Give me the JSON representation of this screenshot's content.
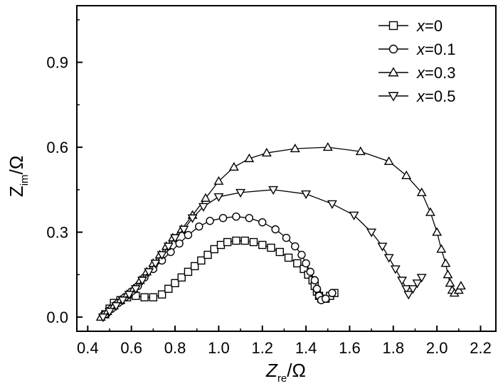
{
  "chart_data": {
    "type": "scatter",
    "title": "",
    "xlabel": {
      "main": "Z",
      "sub": "re",
      "unit": "/Ω"
    },
    "ylabel": {
      "main": "Z",
      "sub": "im",
      "unit": "/Ω"
    },
    "xlim": [
      0.35,
      2.27
    ],
    "ylim": [
      -0.05,
      1.1
    ],
    "xticks": [
      0.4,
      0.6,
      0.8,
      1.0,
      1.2,
      1.4,
      1.6,
      1.8,
      2.0,
      2.2
    ],
    "xtick_labels": [
      "0.4",
      "0.6",
      "0.8",
      "1.0",
      "1.2",
      "1.4",
      "1.6",
      "1.8",
      "2.0",
      "2.2"
    ],
    "yticks": [
      0.0,
      0.3,
      0.6,
      0.9
    ],
    "ytick_labels": [
      "0.0",
      "0.3",
      "0.6",
      "0.9"
    ],
    "grid": false,
    "legend_position": "top-right",
    "color": "#000000",
    "series": [
      {
        "name": "x=0",
        "legend_var": "x",
        "legend_value": "=0",
        "marker": "square",
        "points": [
          [
            0.48,
            0.01
          ],
          [
            0.5,
            0.03
          ],
          [
            0.52,
            0.05
          ],
          [
            0.55,
            0.06
          ],
          [
            0.58,
            0.07
          ],
          [
            0.62,
            0.075
          ],
          [
            0.66,
            0.07
          ],
          [
            0.7,
            0.07
          ],
          [
            0.74,
            0.08
          ],
          [
            0.77,
            0.1
          ],
          [
            0.8,
            0.12
          ],
          [
            0.83,
            0.14
          ],
          [
            0.86,
            0.16
          ],
          [
            0.89,
            0.18
          ],
          [
            0.92,
            0.2
          ],
          [
            0.95,
            0.22
          ],
          [
            0.98,
            0.24
          ],
          [
            1.01,
            0.255
          ],
          [
            1.04,
            0.265
          ],
          [
            1.08,
            0.27
          ],
          [
            1.12,
            0.27
          ],
          [
            1.16,
            0.265
          ],
          [
            1.2,
            0.255
          ],
          [
            1.24,
            0.245
          ],
          [
            1.28,
            0.23
          ],
          [
            1.32,
            0.21
          ],
          [
            1.36,
            0.19
          ],
          [
            1.39,
            0.17
          ],
          [
            1.41,
            0.15
          ],
          [
            1.43,
            0.13
          ],
          [
            1.44,
            0.11
          ],
          [
            1.45,
            0.09
          ],
          [
            1.46,
            0.075
          ],
          [
            1.47,
            0.065
          ],
          [
            1.49,
            0.065
          ],
          [
            1.51,
            0.075
          ],
          [
            1.53,
            0.085
          ]
        ]
      },
      {
        "name": "x=0.1",
        "legend_var": "x",
        "legend_value": "=0.1",
        "marker": "circle",
        "points": [
          [
            0.48,
            0.01
          ],
          [
            0.51,
            0.03
          ],
          [
            0.54,
            0.05
          ],
          [
            0.57,
            0.07
          ],
          [
            0.6,
            0.09
          ],
          [
            0.63,
            0.11
          ],
          [
            0.66,
            0.14
          ],
          [
            0.7,
            0.17
          ],
          [
            0.74,
            0.2
          ],
          [
            0.78,
            0.23
          ],
          [
            0.82,
            0.26
          ],
          [
            0.86,
            0.29
          ],
          [
            0.91,
            0.32
          ],
          [
            0.96,
            0.34
          ],
          [
            1.02,
            0.35
          ],
          [
            1.08,
            0.355
          ],
          [
            1.14,
            0.35
          ],
          [
            1.2,
            0.335
          ],
          [
            1.26,
            0.31
          ],
          [
            1.31,
            0.28
          ],
          [
            1.35,
            0.25
          ],
          [
            1.38,
            0.22
          ],
          [
            1.4,
            0.19
          ],
          [
            1.42,
            0.16
          ],
          [
            1.44,
            0.13
          ],
          [
            1.45,
            0.1
          ],
          [
            1.46,
            0.075
          ],
          [
            1.47,
            0.06
          ],
          [
            1.49,
            0.065
          ],
          [
            1.52,
            0.085
          ]
        ]
      },
      {
        "name": "x=0.3",
        "legend_var": "x",
        "legend_value": "=0.3",
        "marker": "triangle-up",
        "points": [
          [
            0.46,
            0.0
          ],
          [
            0.49,
            0.02
          ],
          [
            0.52,
            0.04
          ],
          [
            0.55,
            0.06
          ],
          [
            0.58,
            0.08
          ],
          [
            0.61,
            0.1
          ],
          [
            0.64,
            0.13
          ],
          [
            0.67,
            0.16
          ],
          [
            0.7,
            0.19
          ],
          [
            0.73,
            0.22
          ],
          [
            0.76,
            0.25
          ],
          [
            0.79,
            0.28
          ],
          [
            0.83,
            0.31
          ],
          [
            0.88,
            0.36
          ],
          [
            0.94,
            0.42
          ],
          [
            1.0,
            0.48
          ],
          [
            1.07,
            0.53
          ],
          [
            1.14,
            0.56
          ],
          [
            1.22,
            0.58
          ],
          [
            1.35,
            0.595
          ],
          [
            1.5,
            0.6
          ],
          [
            1.65,
            0.585
          ],
          [
            1.78,
            0.55
          ],
          [
            1.86,
            0.5
          ],
          [
            1.93,
            0.44
          ],
          [
            1.97,
            0.37
          ],
          [
            2.0,
            0.3
          ],
          [
            2.02,
            0.24
          ],
          [
            2.04,
            0.19
          ],
          [
            2.05,
            0.15
          ],
          [
            2.06,
            0.12
          ],
          [
            2.07,
            0.095
          ],
          [
            2.08,
            0.085
          ],
          [
            2.1,
            0.095
          ],
          [
            2.11,
            0.11
          ]
        ]
      },
      {
        "name": "x=0.5",
        "legend_var": "x",
        "legend_value": "=0.5",
        "marker": "triangle-down",
        "points": [
          [
            0.47,
            0.0
          ],
          [
            0.5,
            0.02
          ],
          [
            0.53,
            0.04
          ],
          [
            0.56,
            0.06
          ],
          [
            0.59,
            0.08
          ],
          [
            0.62,
            0.1
          ],
          [
            0.65,
            0.13
          ],
          [
            0.68,
            0.16
          ],
          [
            0.71,
            0.19
          ],
          [
            0.74,
            0.22
          ],
          [
            0.77,
            0.25
          ],
          [
            0.8,
            0.28
          ],
          [
            0.84,
            0.31
          ],
          [
            0.88,
            0.35
          ],
          [
            0.93,
            0.39
          ],
          [
            1.0,
            0.425
          ],
          [
            1.1,
            0.44
          ],
          [
            1.25,
            0.45
          ],
          [
            1.4,
            0.435
          ],
          [
            1.52,
            0.4
          ],
          [
            1.62,
            0.36
          ],
          [
            1.7,
            0.3
          ],
          [
            1.75,
            0.25
          ],
          [
            1.78,
            0.21
          ],
          [
            1.81,
            0.17
          ],
          [
            1.84,
            0.13
          ],
          [
            1.86,
            0.1
          ],
          [
            1.87,
            0.08
          ],
          [
            1.89,
            0.1
          ],
          [
            1.91,
            0.12
          ],
          [
            1.93,
            0.14
          ]
        ]
      }
    ]
  }
}
